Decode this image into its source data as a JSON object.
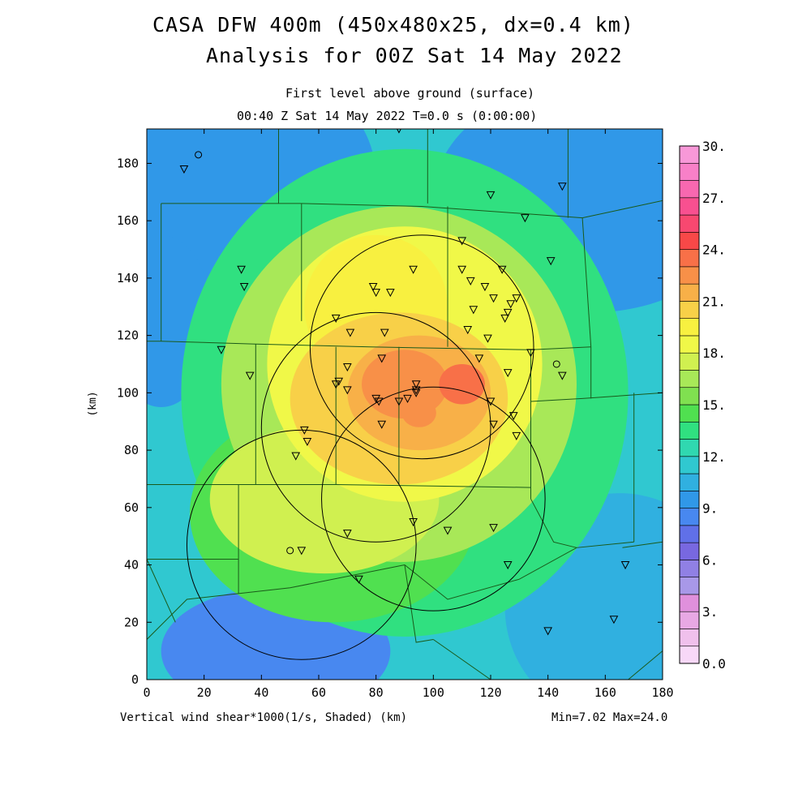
{
  "titles": {
    "line1": "CASA DFW 400m (450x480x25, dx=0.4 km)",
    "line2": "Analysis for 00Z Sat 14 May 2022",
    "level": "First level above ground (surface)",
    "time": "00:40 Z Sat 14 May 2022    T=0.0 s (0:00:00)"
  },
  "footer": {
    "field": "Vertical wind shear*1000(1/s, Shaded)  (km)",
    "minmax": "Min=7.02 Max=24.0"
  },
  "chart_data": {
    "type": "heatmap",
    "xlabel": "",
    "ylabel": "(km)",
    "xlim": [
      0,
      180
    ],
    "ylim": [
      0,
      192
    ],
    "x_ticks": [
      "0",
      "20",
      "40",
      "60",
      "80",
      "100",
      "120",
      "140",
      "160",
      "180"
    ],
    "y_ticks": [
      "0",
      "20",
      "40",
      "60",
      "80",
      "100",
      "120",
      "140",
      "160",
      "180"
    ],
    "field_min": 7.02,
    "field_max": 24.0,
    "colorbar": {
      "labels": [
        "0.0",
        "3.",
        "6.",
        "9.",
        "12.",
        "15.",
        "18.",
        "21.",
        "24.",
        "27.",
        "30."
      ],
      "range": [
        0,
        30
      ],
      "colors": [
        "#f8d8f8",
        "#f0c0ec",
        "#e8a8e4",
        "#e090dc",
        "#a898e8",
        "#9080e4",
        "#7868e0",
        "#6070e8",
        "#4888f0",
        "#3098e8",
        "#30b0e0",
        "#30c8d0",
        "#30d8b0",
        "#30e080",
        "#50e050",
        "#80e050",
        "#a8e858",
        "#d0f050",
        "#f0f848",
        "#f8f040",
        "#f8d048",
        "#f8b048",
        "#f89048",
        "#f87048",
        "#f84848",
        "#f84870",
        "#f85090",
        "#f868b0",
        "#f880c8",
        "#f898d8"
      ]
    },
    "shear_blobs": [
      {
        "cx": 90,
        "cy": 95,
        "rx": 110,
        "ry": 120,
        "value": 11
      },
      {
        "cx": 20,
        "cy": 175,
        "rx": 60,
        "ry": 45,
        "value": 9
      },
      {
        "cx": 155,
        "cy": 168,
        "rx": 55,
        "ry": 40,
        "value": 9
      },
      {
        "cx": 45,
        "cy": 10,
        "rx": 40,
        "ry": 22,
        "value": 8
      },
      {
        "cx": 5,
        "cy": 125,
        "rx": 18,
        "ry": 30,
        "value": 9
      },
      {
        "cx": 165,
        "cy": 25,
        "rx": 40,
        "ry": 40,
        "value": 10
      },
      {
        "cx": 90,
        "cy": 100,
        "rx": 78,
        "ry": 85,
        "value": 13
      },
      {
        "cx": 65,
        "cy": 58,
        "rx": 50,
        "ry": 38,
        "value": 14
      },
      {
        "cx": 88,
        "cy": 103,
        "rx": 62,
        "ry": 62,
        "value": 16
      },
      {
        "cx": 62,
        "cy": 63,
        "rx": 40,
        "ry": 26,
        "value": 17
      },
      {
        "cx": 90,
        "cy": 110,
        "rx": 48,
        "ry": 48,
        "value": 18
      },
      {
        "cx": 80,
        "cy": 130,
        "rx": 25,
        "ry": 25,
        "value": 19
      },
      {
        "cx": 88,
        "cy": 98,
        "rx": 38,
        "ry": 30,
        "value": 20
      },
      {
        "cx": 95,
        "cy": 100,
        "rx": 25,
        "ry": 20,
        "value": 21
      },
      {
        "cx": 90,
        "cy": 103,
        "rx": 15,
        "ry": 12,
        "value": 22
      },
      {
        "cx": 110,
        "cy": 103,
        "rx": 8,
        "ry": 7,
        "value": 23
      },
      {
        "cx": 95,
        "cy": 93,
        "rx": 6,
        "ry": 5,
        "value": 22
      }
    ],
    "radar_rings": [
      {
        "cx": 96,
        "cy": 116,
        "r": 39
      },
      {
        "cx": 80,
        "cy": 88,
        "r": 40
      },
      {
        "cx": 100,
        "cy": 63,
        "r": 39
      },
      {
        "cx": 54,
        "cy": 47,
        "r": 40
      }
    ],
    "stations": [
      [
        13,
        178
      ],
      [
        33,
        143
      ],
      [
        34,
        137
      ],
      [
        26,
        115
      ],
      [
        36,
        106
      ],
      [
        66,
        126
      ],
      [
        71,
        121
      ],
      [
        79,
        137
      ],
      [
        80,
        135
      ],
      [
        85,
        135
      ],
      [
        83,
        121
      ],
      [
        93,
        143
      ],
      [
        110,
        153
      ],
      [
        110,
        143
      ],
      [
        113,
        139
      ],
      [
        118,
        137
      ],
      [
        121,
        133
      ],
      [
        124,
        143
      ],
      [
        127,
        131
      ],
      [
        126,
        128
      ],
      [
        125,
        126
      ],
      [
        129,
        133
      ],
      [
        114,
        129
      ],
      [
        112,
        122
      ],
      [
        119,
        119
      ],
      [
        116,
        112
      ],
      [
        70,
        109
      ],
      [
        67,
        104
      ],
      [
        66,
        103
      ],
      [
        70,
        101
      ],
      [
        82,
        112
      ],
      [
        80,
        98
      ],
      [
        81,
        97
      ],
      [
        88,
        97
      ],
      [
        91,
        98
      ],
      [
        94,
        103
      ],
      [
        94,
        101
      ],
      [
        94,
        100
      ],
      [
        82,
        89
      ],
      [
        55,
        87
      ],
      [
        56,
        83
      ],
      [
        52,
        78
      ],
      [
        120,
        97
      ],
      [
        121,
        89
      ],
      [
        128,
        92
      ],
      [
        129,
        85
      ],
      [
        126,
        107
      ],
      [
        134,
        114
      ],
      [
        145,
        106
      ],
      [
        120,
        169
      ],
      [
        132,
        161
      ],
      [
        145,
        172
      ],
      [
        141,
        146
      ],
      [
        88,
        192
      ],
      [
        93,
        55
      ],
      [
        105,
        52
      ],
      [
        121,
        53
      ],
      [
        70,
        51
      ],
      [
        54,
        45
      ],
      [
        74,
        35
      ],
      [
        126,
        40
      ],
      [
        140,
        17
      ],
      [
        163,
        21
      ],
      [
        167,
        40
      ]
    ],
    "circle_sites": [
      [
        18,
        183
      ],
      [
        143,
        110
      ],
      [
        50,
        45
      ]
    ],
    "county_lines": [
      [
        [
          0,
          192
        ],
        [
          180,
          192
        ]
      ],
      [
        [
          46,
          192
        ],
        [
          46,
          166
        ]
      ],
      [
        [
          98,
          192
        ],
        [
          98,
          166
        ]
      ],
      [
        [
          147,
          192
        ],
        [
          147,
          161
        ]
      ],
      [
        [
          5,
          166
        ],
        [
          5,
          118
        ]
      ],
      [
        [
          5,
          166
        ],
        [
          54,
          166
        ]
      ],
      [
        [
          54,
          166
        ],
        [
          54,
          125
        ]
      ],
      [
        [
          54,
          166
        ],
        [
          96,
          165
        ],
        [
          152,
          161
        ]
      ],
      [
        [
          152,
          161
        ],
        [
          180,
          167
        ]
      ],
      [
        [
          152,
          161
        ],
        [
          155,
          116
        ]
      ],
      [
        [
          0,
          118
        ],
        [
          5,
          118
        ]
      ],
      [
        [
          5,
          118
        ],
        [
          38,
          117
        ],
        [
          78,
          116
        ],
        [
          134,
          115
        ],
        [
          155,
          116
        ]
      ],
      [
        [
          38,
          117
        ],
        [
          38,
          68
        ]
      ],
      [
        [
          105,
          165
        ],
        [
          105,
          116
        ]
      ],
      [
        [
          134,
          115
        ],
        [
          134,
          63
        ]
      ],
      [
        [
          134,
          97
        ],
        [
          152,
          98
        ],
        [
          180,
          100
        ]
      ],
      [
        [
          155,
          116
        ],
        [
          155,
          98
        ]
      ],
      [
        [
          170,
          100
        ],
        [
          170,
          48
        ]
      ],
      [
        [
          0,
          68
        ],
        [
          38,
          68
        ],
        [
          66,
          68
        ],
        [
          134,
          67
        ]
      ],
      [
        [
          66,
          116
        ],
        [
          66,
          68
        ]
      ],
      [
        [
          88,
          116
        ],
        [
          88,
          68
        ]
      ],
      [
        [
          32,
          68
        ],
        [
          32,
          30
        ]
      ],
      [
        [
          0,
          68
        ],
        [
          0,
          30
        ]
      ],
      [
        [
          0,
          42
        ],
        [
          22,
          42
        ],
        [
          32,
          42
        ]
      ],
      [
        [
          32,
          30
        ],
        [
          50,
          32
        ],
        [
          90,
          40
        ]
      ],
      [
        [
          90,
          40
        ],
        [
          105,
          28
        ],
        [
          130,
          35
        ],
        [
          150,
          46
        ],
        [
          170,
          48
        ]
      ],
      [
        [
          90,
          40
        ],
        [
          94,
          13
        ],
        [
          100,
          14
        ]
      ],
      [
        [
          100,
          14
        ],
        [
          120,
          0
        ]
      ],
      [
        [
          0,
          14
        ],
        [
          14,
          28
        ],
        [
          32,
          30
        ]
      ],
      [
        [
          134,
          63
        ],
        [
          142,
          48
        ],
        [
          150,
          46
        ]
      ],
      [
        [
          166,
          46
        ],
        [
          180,
          48
        ]
      ],
      [
        [
          0,
          42
        ],
        [
          10,
          20
        ]
      ],
      [
        [
          168,
          0
        ],
        [
          180,
          10
        ]
      ]
    ]
  }
}
